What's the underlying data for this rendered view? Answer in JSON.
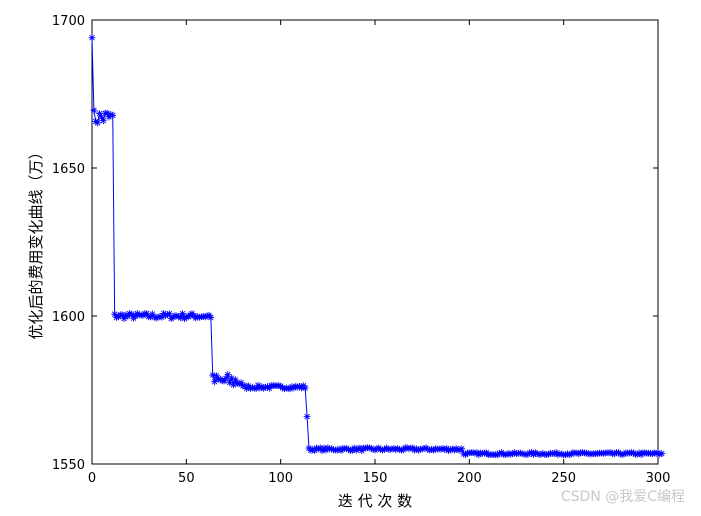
{
  "chart_data": {
    "type": "line",
    "title": "",
    "xlabel": "迭 代 次 数",
    "ylabel": "优化后的费用变化曲线（万）",
    "xlim": [
      0,
      300
    ],
    "ylim": [
      1550,
      1700
    ],
    "xticks": [
      0,
      50,
      100,
      150,
      200,
      250,
      300
    ],
    "yticks": [
      1550,
      1600,
      1650,
      1700
    ],
    "grid": false,
    "legend": "none",
    "series_color": "#0000ff",
    "marker": "asterisk",
    "segments": [
      {
        "x0": 0,
        "x1": 1,
        "y": 1694
      },
      {
        "x0": 1,
        "x1": 12,
        "y": 1667
      },
      {
        "x0": 12,
        "x1": 64,
        "y": 1600
      },
      {
        "x0": 64,
        "x1": 80,
        "y": 1578
      },
      {
        "x0": 80,
        "x1": 114,
        "y": 1576
      },
      {
        "x0": 114,
        "x1": 115,
        "y": 1566
      },
      {
        "x0": 115,
        "x1": 197,
        "y": 1555
      },
      {
        "x0": 197,
        "x1": 302,
        "y": 1553.5
      }
    ],
    "noise": [
      {
        "from": 1,
        "to": 12,
        "amp": 3.0
      },
      {
        "from": 12,
        "to": 64,
        "amp": 1.0
      },
      {
        "from": 64,
        "to": 80,
        "amp": 2.5
      },
      {
        "from": 80,
        "to": 114,
        "amp": 0.6
      },
      {
        "from": 115,
        "to": 197,
        "amp": 0.5
      },
      {
        "from": 197,
        "to": 302,
        "amp": 0.4
      }
    ]
  },
  "watermark": "CSDN @我爱C编程"
}
